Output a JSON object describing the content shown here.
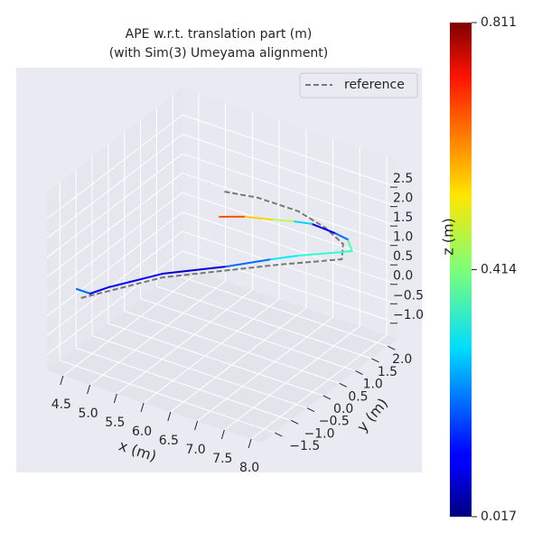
{
  "chart_data": {
    "type": "line3d",
    "title": "APE w.r.t. translation part (m)",
    "subtitle": "(with Sim(3) Umeyama alignment)",
    "xlabel": "x (m)",
    "ylabel": "y (m)",
    "zlabel": "z (m)",
    "xlim": [
      4.2,
      8.2
    ],
    "ylim": [
      -1.9,
      2.3
    ],
    "zlim": [
      -1.4,
      3.2
    ],
    "xticks": [
      4.5,
      {
        "value": 5,
        "label": "5.0"
      },
      5.5,
      {
        "value": 6,
        "label": "6.0"
      },
      6.5,
      {
        "value": 7,
        "label": "7.0"
      },
      7.5,
      {
        "value": 8,
        "label": "8.0"
      }
    ],
    "yticks": [
      {
        "value": -1.5,
        "label": "−1.5"
      },
      {
        "value": -1,
        "label": "−1.0"
      },
      {
        "value": -0.5,
        "label": "−0.5"
      },
      {
        "value": 0,
        "label": "0.0"
      },
      0.5,
      {
        "value": 1,
        "label": "1.0"
      },
      1.5,
      {
        "value": 2,
        "label": "2.0"
      }
    ],
    "zticks": [
      {
        "value": -1,
        "label": "−1.0"
      },
      {
        "value": -0.5,
        "label": "−0.5"
      },
      {
        "value": 0,
        "label": "0.0"
      },
      0.5,
      {
        "value": 1,
        "label": "1.0"
      },
      1.5,
      {
        "value": 2,
        "label": "2.0"
      },
      2.5
    ],
    "grid": true,
    "legend": "upper right",
    "series": [
      {
        "name": "reference",
        "color": "#777777",
        "dashed": true,
        "x": [
          4.6,
          5.31,
          6.61,
          7.32,
          7.47,
          7.36,
          7.0,
          6.37,
          5.82
        ],
        "y": [
          -1.51,
          -0.16,
          1.31,
          2.04,
          1.83,
          1.46,
          1.23,
          1.01,
          0.86
        ],
        "z": [
          0.4,
          0.4,
          0.4,
          0.4,
          1.0,
          1.6,
          2.0,
          2.2,
          2.2
        ]
      },
      {
        "colormap": "jet",
        "x": [
          4.46,
          4.71,
          4.84,
          5.31,
          6.01,
          6.47,
          6.76,
          7.71,
          7.65,
          7.5,
          7.12,
          6.84,
          6.52,
          6.12,
          5.81
        ],
        "y": [
          -1.41,
          -1.41,
          -1.06,
          -0.17,
          0.63,
          1.26,
          1.62,
          1.71,
          1.67,
          1.51,
          1.44,
          1.34,
          1.18,
          1.0,
          0.77
        ],
        "z": [
          0.5,
          0.5,
          0.5,
          0.5,
          0.5,
          0.5,
          0.5,
          1.0,
          1.3,
          1.5,
          1.6,
          1.6,
          1.6,
          1.6,
          1.6
        ],
        "error": [
          0.2,
          0.1,
          0.12,
          0.08,
          0.2,
          0.3,
          0.35,
          0.38,
          0.2,
          0.1,
          0.28,
          0.45,
          0.55,
          0.65,
          0.8
        ]
      }
    ],
    "colorbar": {
      "lim": [
        0.017,
        0.811
      ],
      "ticks": [
        0.017,
        0.414,
        0.811
      ]
    }
  }
}
